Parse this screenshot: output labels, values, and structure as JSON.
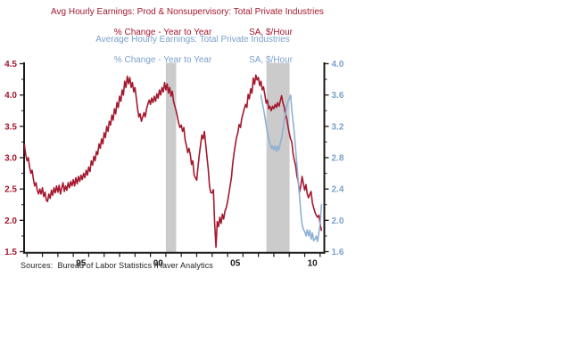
{
  "chart_data": {
    "type": "line",
    "titles": {
      "series1_title": "Avg Hourly Earnings: Prod & Nonsupervisory: Total Private Industries",
      "series1_subtitle_a": "% Change - Year to Year",
      "series1_subtitle_b": "SA, $/Hour",
      "series2_title": "Average Hourly Earnings: Total Private Industries",
      "series2_subtitle_a": "% Change - Year to Year",
      "series2_subtitle_b": "SA, $/Hour"
    },
    "source_note": "Sources:  Bureau of Labor Statistics /Haver Analytics",
    "colors": {
      "series1": "#A5182E",
      "series2": "#8FB0D4",
      "left_axis_text": "#A5182E",
      "right_axis_text": "#7BA0CC",
      "axis_line": "#1a1a1a",
      "x_axis_text": "#1a1a1a",
      "recession_band": "#CBCBCB"
    },
    "left_axis": {
      "range": [
        1.5,
        4.5
      ],
      "major_step": 0.5,
      "minor_step": 0.25,
      "labels": [
        "1.5",
        "2.0",
        "2.5",
        "3.0",
        "3.5",
        "4.0",
        "4.5"
      ]
    },
    "right_axis": {
      "range": [
        1.6,
        4.0
      ],
      "major_step": 0.4,
      "minor_step": 0.2,
      "labels": [
        "1.6",
        "2.0",
        "2.4",
        "2.8",
        "3.2",
        "3.6",
        "4.0"
      ]
    },
    "x_axis": {
      "range": [
        1991.81,
        2011.3
      ],
      "first_tick_year": 1992,
      "last_tick_year": 2011,
      "tick_interval_years": 1,
      "labeled_ticks": [
        {
          "year": 1995,
          "label": "95"
        },
        {
          "year": 2000,
          "label": "00"
        },
        {
          "year": 2005,
          "label": "05"
        },
        {
          "year": 2010,
          "label": "10"
        }
      ],
      "label_center_offset_years": 0.5
    },
    "recession_bands": [
      {
        "start": 2001.0,
        "end": 2001.67
      },
      {
        "start": 2007.52,
        "end": 2009.02
      }
    ],
    "series": [
      {
        "name": "Avg Hourly Earnings: Prod & Nonsupervisory: Total Private Industries",
        "axis": "left",
        "color": "#A5182E",
        "start_year": 1991.833,
        "step_years": 0.08333,
        "values": [
          3.2,
          3.05,
          2.95,
          3.0,
          2.85,
          2.75,
          2.8,
          2.65,
          2.55,
          2.6,
          2.48,
          2.42,
          2.5,
          2.42,
          2.52,
          2.38,
          2.45,
          2.32,
          2.3,
          2.42,
          2.35,
          2.48,
          2.4,
          2.52,
          2.44,
          2.55,
          2.45,
          2.56,
          2.42,
          2.52,
          2.6,
          2.46,
          2.55,
          2.48,
          2.6,
          2.52,
          2.62,
          2.55,
          2.65,
          2.55,
          2.68,
          2.58,
          2.7,
          2.62,
          2.72,
          2.65,
          2.75,
          2.68,
          2.8,
          2.72,
          2.85,
          2.78,
          2.95,
          2.88,
          3.02,
          2.95,
          3.1,
          3.05,
          3.22,
          3.15,
          3.3,
          3.22,
          3.4,
          3.32,
          3.5,
          3.42,
          3.58,
          3.52,
          3.68,
          3.6,
          3.78,
          3.7,
          3.88,
          3.8,
          3.98,
          3.9,
          4.08,
          4.0,
          4.22,
          4.12,
          4.3,
          4.18,
          4.28,
          4.12,
          4.2,
          4.05,
          4.12,
          3.95,
          3.78,
          3.65,
          3.7,
          3.58,
          3.65,
          3.72,
          3.65,
          3.78,
          3.85,
          3.92,
          3.85,
          3.95,
          3.88,
          3.98,
          3.9,
          4.02,
          3.95,
          4.08,
          4.0,
          4.12,
          4.05,
          4.2,
          4.08,
          4.18,
          4.03,
          4.12,
          3.98,
          4.06,
          3.9,
          3.82,
          3.75,
          3.65,
          3.55,
          3.48,
          3.52,
          3.42,
          3.48,
          3.28,
          3.2,
          3.08,
          3.15,
          3.05,
          2.89,
          2.95,
          2.72,
          2.68,
          2.64,
          2.85,
          3.05,
          3.2,
          3.36,
          3.3,
          3.42,
          3.21,
          3.01,
          2.82,
          2.54,
          2.44,
          2.44,
          2.49,
          1.95,
          1.57,
          1.98,
          1.9,
          2.05,
          1.95,
          2.1,
          2.02,
          2.15,
          2.2,
          2.3,
          2.42,
          2.55,
          2.68,
          2.9,
          3.07,
          3.2,
          3.32,
          3.4,
          3.53,
          3.48,
          3.62,
          3.7,
          3.78,
          3.85,
          3.8,
          4.01,
          3.94,
          4.1,
          4.03,
          4.27,
          4.17,
          4.32,
          4.24,
          4.28,
          4.15,
          4.22,
          4.08,
          4.13,
          4.01,
          3.87,
          3.92,
          3.78,
          3.82,
          3.75,
          3.82,
          3.78,
          3.85,
          3.8,
          3.88,
          3.82,
          3.9,
          3.99,
          3.88,
          3.82,
          3.7,
          3.63,
          3.5,
          3.39,
          3.3,
          3.25,
          3.06,
          2.95,
          2.87,
          2.7,
          2.62,
          2.45,
          2.55,
          2.7,
          2.58,
          2.48,
          2.57,
          2.42,
          2.36,
          2.42,
          2.46,
          2.28,
          2.2,
          2.13,
          2.08,
          2.05,
          2.08,
          1.95,
          1.84
        ]
      },
      {
        "name": "Average Hourly Earnings: Total Private Industries",
        "axis": "right",
        "color": "#8FB0D4",
        "start_year": 2007.167,
        "step_years": 0.08333,
        "values": [
          3.6,
          3.5,
          3.42,
          3.32,
          3.22,
          3.12,
          3.05,
          2.98,
          2.92,
          2.95,
          2.9,
          2.95,
          2.88,
          2.95,
          2.9,
          2.98,
          3.05,
          3.15,
          3.28,
          3.35,
          3.45,
          3.52,
          3.55,
          3.6,
          3.4,
          3.25,
          3.1,
          2.9,
          2.7,
          2.5,
          2.3,
          2.1,
          1.95,
          1.88,
          1.86,
          1.8,
          1.88,
          1.8,
          1.87,
          1.76,
          1.84,
          1.74,
          1.76,
          1.8,
          1.73,
          1.84,
          1.95,
          2.2
        ]
      }
    ]
  }
}
